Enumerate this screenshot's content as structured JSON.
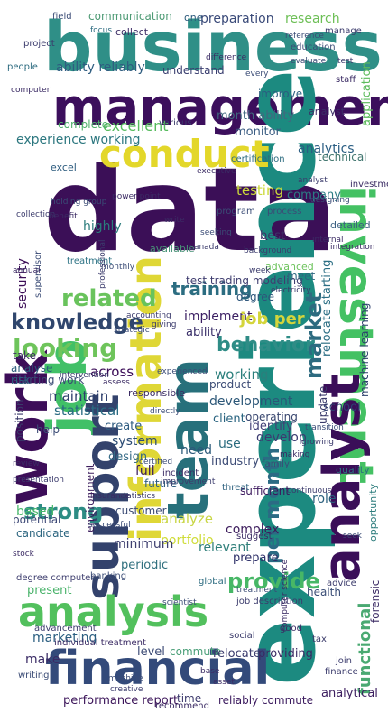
{
  "words": [
    {
      "text": "business",
      "color": "#2f8f87"
    },
    {
      "text": "management",
      "color": "#3c0f5c"
    },
    {
      "text": "data",
      "color": "#3b0f57"
    },
    {
      "text": "experience",
      "color": "#1c8a80"
    },
    {
      "text": "conduct",
      "color": "#e3d72a"
    },
    {
      "text": "investment",
      "color": "#44c163"
    },
    {
      "text": "work",
      "color": "#3c0d58"
    },
    {
      "text": "job",
      "color": "#41c067"
    },
    {
      "text": "team",
      "color": "#27707b"
    },
    {
      "text": "information",
      "color": "#dfd736"
    },
    {
      "text": "support",
      "color": "#33426c"
    },
    {
      "text": "analyst",
      "color": "#3a0e58"
    },
    {
      "text": "analysis",
      "color": "#52c05d"
    },
    {
      "text": "financial",
      "color": "#334a7a"
    },
    {
      "text": "knowledge",
      "color": "#2f466d"
    },
    {
      "text": "looking",
      "color": "#6ec45b"
    },
    {
      "text": "related",
      "color": "#69c35c"
    },
    {
      "text": "behavior",
      "color": "#2f8c86"
    },
    {
      "text": "training",
      "color": "#2c6d81"
    },
    {
      "text": "strong",
      "color": "#2d8c84"
    },
    {
      "text": "market",
      "color": "#2d6b80"
    },
    {
      "text": "provide",
      "color": "#47b766"
    },
    {
      "text": "per month",
      "color": "#2b6b84"
    },
    {
      "text": "experience working",
      "color": "#2c777f"
    },
    {
      "text": "analytics",
      "color": "#2b5e83"
    },
    {
      "text": "research",
      "color": "#6dbf56"
    },
    {
      "text": "preparation",
      "color": "#3a4a79"
    },
    {
      "text": "communication",
      "color": "#4d9a74"
    },
    {
      "text": "ability reliably",
      "color": "#2f5d80"
    },
    {
      "text": "understand",
      "color": "#3a3f70"
    },
    {
      "text": "excellent",
      "color": "#56bb5d"
    },
    {
      "text": "complete",
      "color": "#4fb16b"
    },
    {
      "text": "monitor",
      "color": "#3b5d83"
    },
    {
      "text": "month ability",
      "color": "#41687f"
    },
    {
      "text": "testing",
      "color": "#cbd93a"
    },
    {
      "text": "company",
      "color": "#2b7c84"
    },
    {
      "text": "technical",
      "color": "#41766f"
    },
    {
      "text": "relocate starting",
      "color": "#2b6e84"
    },
    {
      "text": "implement",
      "color": "#3a1e62"
    },
    {
      "text": "job per",
      "color": "#d4d53b"
    },
    {
      "text": "test trading modeling",
      "color": "#3f3d6f"
    },
    {
      "text": "ability",
      "color": "#3a2f69"
    },
    {
      "text": "working",
      "color": "#2b7f7c"
    },
    {
      "text": "analyse",
      "color": "#2a5a7a"
    },
    {
      "text": "starting work",
      "color": "#3a4a74"
    },
    {
      "text": "maintain",
      "color": "#2d3e6c"
    },
    {
      "text": "statistical",
      "color": "#2a6b83"
    },
    {
      "text": "development",
      "color": "#2b5677"
    },
    {
      "text": "client",
      "color": "#2a6480"
    },
    {
      "text": "operating",
      "color": "#37456e"
    },
    {
      "text": "identify",
      "color": "#413f76"
    },
    {
      "text": "develop",
      "color": "#3b3b70"
    },
    {
      "text": "industry",
      "color": "#3d4c76"
    },
    {
      "text": "need",
      "color": "#2c5a7a"
    },
    {
      "text": "use",
      "color": "#2a6b7e"
    },
    {
      "text": "system",
      "color": "#2b4b74"
    },
    {
      "text": "full",
      "color": "#3a1b5c"
    },
    {
      "text": "design",
      "color": "#356a86"
    },
    {
      "text": "create",
      "color": "#2f5c80"
    },
    {
      "text": "across",
      "color": "#3b0c57"
    },
    {
      "text": "role",
      "color": "#2a5f7d"
    },
    {
      "text": "candidate",
      "color": "#2d6680"
    },
    {
      "text": "based",
      "color": "#4ab86c"
    },
    {
      "text": "potential",
      "color": "#3b4775"
    },
    {
      "text": "analyze",
      "color": "#c8d644"
    },
    {
      "text": "portfolio",
      "color": "#cfdc39"
    },
    {
      "text": "relevant",
      "color": "#2f7f7a"
    },
    {
      "text": "complex",
      "color": "#3c1c5c"
    },
    {
      "text": "prepare",
      "color": "#2d2f68"
    },
    {
      "text": "sufficient",
      "color": "#3a165c"
    },
    {
      "text": "minimum",
      "color": "#3e3f6f"
    },
    {
      "text": "periodic",
      "color": "#2f6f7e"
    },
    {
      "text": "marketing",
      "color": "#2a5e80"
    },
    {
      "text": "make",
      "color": "#3a2b65"
    },
    {
      "text": "level",
      "color": "#3c4b76"
    },
    {
      "text": "commute",
      "color": "#4a9f78"
    },
    {
      "text": "relocate",
      "color": "#3a3a6c"
    },
    {
      "text": "providing",
      "color": "#3a2a64"
    },
    {
      "text": "performance report",
      "color": "#3b1459"
    },
    {
      "text": "time",
      "color": "#3d3a6c"
    },
    {
      "text": "reliably commute",
      "color": "#3b1a5e"
    },
    {
      "text": "functional",
      "color": "#4aa972"
    },
    {
      "text": "analytical",
      "color": "#3d1f60"
    },
    {
      "text": "school",
      "color": "#2d3f70"
    },
    {
      "text": "available",
      "color": "#4a9478"
    },
    {
      "text": "security",
      "color": "#3b0d56"
    },
    {
      "text": "highly",
      "color": "#2b7c7c"
    },
    {
      "text": "best",
      "color": "#3d3568"
    },
    {
      "text": "detailed",
      "color": "#3a5f80"
    },
    {
      "text": "product",
      "color": "#3a4a74"
    },
    {
      "text": "degree",
      "color": "#2d557a"
    },
    {
      "text": "take",
      "color": "#3b2b64"
    },
    {
      "text": "meet",
      "color": "#2c657f"
    },
    {
      "text": "treatment",
      "color": "#2c7284"
    },
    {
      "text": "customer",
      "color": "#3b4b75"
    },
    {
      "text": "future",
      "color": "#2e5d80"
    },
    {
      "text": "environment",
      "color": "#3b1c5c"
    },
    {
      "text": "machine learning",
      "color": "#2b3f6b"
    },
    {
      "text": "update",
      "color": "#3a3a6a"
    },
    {
      "text": "position",
      "color": "#3a3a6a"
    },
    {
      "text": "help",
      "color": "#3b4b75"
    },
    {
      "text": "risk",
      "color": "#2b5f7d"
    },
    {
      "text": "forensic",
      "color": "#3b2a64"
    },
    {
      "text": "opportunity",
      "color": "#2c7c7c"
    },
    {
      "text": "health",
      "color": "#3a4d76"
    },
    {
      "text": "quality",
      "color": "#2b6e7f"
    },
    {
      "text": "one",
      "color": "#2d5a7c"
    },
    {
      "text": "collect",
      "color": "#3b2b64"
    },
    {
      "text": "excel",
      "color": "#2b5a7d"
    },
    {
      "text": "accounting",
      "color": "#3b3b6c"
    },
    {
      "text": "certification",
      "color": "#2b6a7f"
    },
    {
      "text": "education",
      "color": "#3b4c76"
    },
    {
      "text": "application",
      "color": "#5cbb5c"
    },
    {
      "text": "improve",
      "color": "#2b5d80"
    },
    {
      "text": "analyst",
      "color": "#3a2d66"
    },
    {
      "text": "degree computer",
      "color": "#3b3b6c"
    },
    {
      "text": "present",
      "color": "#4ab36b"
    },
    {
      "text": "advancement",
      "color": "#3b3b6c"
    },
    {
      "text": "individual treatment",
      "color": "#3b2b64"
    },
    {
      "text": "banking",
      "color": "#3b4c76"
    },
    {
      "text": "recommend",
      "color": "#3b2b64"
    },
    {
      "text": "finance",
      "color": "#3b3b6c"
    },
    {
      "text": "writing",
      "color": "#3b4c76"
    },
    {
      "text": "stock",
      "color": "#3b2b64"
    },
    {
      "text": "social",
      "color": "#3a3a6a"
    },
    {
      "text": "threat",
      "color": "#2b5f7d"
    },
    {
      "text": "advice",
      "color": "#3b3b6c"
    },
    {
      "text": "incident",
      "color": "#3b2b64"
    },
    {
      "text": "global",
      "color": "#2b6a7f"
    },
    {
      "text": "family",
      "color": "#3b4c76"
    },
    {
      "text": "good",
      "color": "#3b2b64"
    },
    {
      "text": "tax",
      "color": "#3a3a6a"
    },
    {
      "text": "join",
      "color": "#3b3b6c"
    },
    {
      "text": "program",
      "color": "#3b4c76"
    },
    {
      "text": "investment",
      "color": "#3b2b64"
    },
    {
      "text": "process",
      "color": "#3b4c76"
    },
    {
      "text": "project",
      "color": "#3b3b6c"
    },
    {
      "text": "people",
      "color": "#2b6a7f"
    },
    {
      "text": "staff",
      "color": "#3b2b64"
    },
    {
      "text": "field",
      "color": "#3b4c76"
    },
    {
      "text": "manage",
      "color": "#3b3b6c"
    },
    {
      "text": "power point",
      "color": "#3b2b64"
    },
    {
      "text": "holding group",
      "color": "#3b4c76"
    },
    {
      "text": "background",
      "color": "#3b3b6c"
    },
    {
      "text": "internal",
      "color": "#3b2b64"
    },
    {
      "text": "focus",
      "color": "#2b6a7f"
    },
    {
      "text": "supervisor",
      "color": "#3b4c76"
    },
    {
      "text": "analyst",
      "color": "#3b3b6c"
    },
    {
      "text": "executive",
      "color": "#3b2b64"
    },
    {
      "text": "designing",
      "color": "#3b4c76"
    },
    {
      "text": "advanced",
      "color": "#6cc35c"
    },
    {
      "text": "electricity",
      "color": "#3b3b6c"
    },
    {
      "text": "integration",
      "color": "#3b2b64"
    },
    {
      "text": "strategic",
      "color": "#3b4c76"
    },
    {
      "text": "giving",
      "color": "#3b3b6c"
    },
    {
      "text": "responsible",
      "color": "#3b2b64"
    },
    {
      "text": "experienced",
      "color": "#3b4c76"
    },
    {
      "text": "intervention",
      "color": "#3b3b6c"
    },
    {
      "text": "assess",
      "color": "#3b2b64"
    },
    {
      "text": "directly",
      "color": "#3b4c76"
    },
    {
      "text": "improvement",
      "color": "#3b3b6c"
    },
    {
      "text": "insurance",
      "color": "#3b2b64"
    },
    {
      "text": "certified",
      "color": "#3b4c76"
    },
    {
      "text": "statistics",
      "color": "#3b3b6c"
    },
    {
      "text": "suggest",
      "color": "#3b2b64"
    },
    {
      "text": "treatment",
      "color": "#3b4c76"
    },
    {
      "text": "job description",
      "color": "#3b3b6c"
    },
    {
      "text": "computer science",
      "color": "#3b2b64"
    },
    {
      "text": "seek",
      "color": "#3b4c76"
    },
    {
      "text": "growing",
      "color": "#3b3b6c"
    },
    {
      "text": "making",
      "color": "#3b2b64"
    },
    {
      "text": "transition",
      "color": "#3b4c76"
    },
    {
      "text": "presentation",
      "color": "#3b3b6c"
    },
    {
      "text": "review",
      "color": "#3b2b64"
    },
    {
      "text": "successful",
      "color": "#3b4c76"
    },
    {
      "text": "continuous",
      "color": "#3b3b6c"
    },
    {
      "text": "asset",
      "color": "#3b2b64"
    },
    {
      "text": "machine",
      "color": "#3b4c76"
    },
    {
      "text": "creative",
      "color": "#3b3b6c"
    },
    {
      "text": "base",
      "color": "#3b2b64"
    },
    {
      "text": "scientist",
      "color": "#3b4c76"
    },
    {
      "text": "collection",
      "color": "#3b3b6c"
    },
    {
      "text": "annual",
      "color": "#3b2b64"
    },
    {
      "text": "monthly",
      "color": "#3b4c76"
    },
    {
      "text": "canada",
      "color": "#3b3b6c"
    },
    {
      "text": "write",
      "color": "#3b2b64"
    },
    {
      "text": "seeking",
      "color": "#3b4c76"
    },
    {
      "text": "week",
      "color": "#3b3b6c"
    },
    {
      "text": "benefit",
      "color": "#3b2b64"
    },
    {
      "text": "reference",
      "color": "#3b4c76"
    },
    {
      "text": "test",
      "color": "#3b3b6c"
    },
    {
      "text": "difference",
      "color": "#3b2b64"
    },
    {
      "text": "every",
      "color": "#3b4c76"
    },
    {
      "text": "various",
      "color": "#3b3b6c"
    },
    {
      "text": "computer",
      "color": "#3b2b64"
    },
    {
      "text": "evaluate",
      "color": "#3b4c76"
    },
    {
      "text": "professional",
      "color": "#3b3b6c"
    }
  ]
}
